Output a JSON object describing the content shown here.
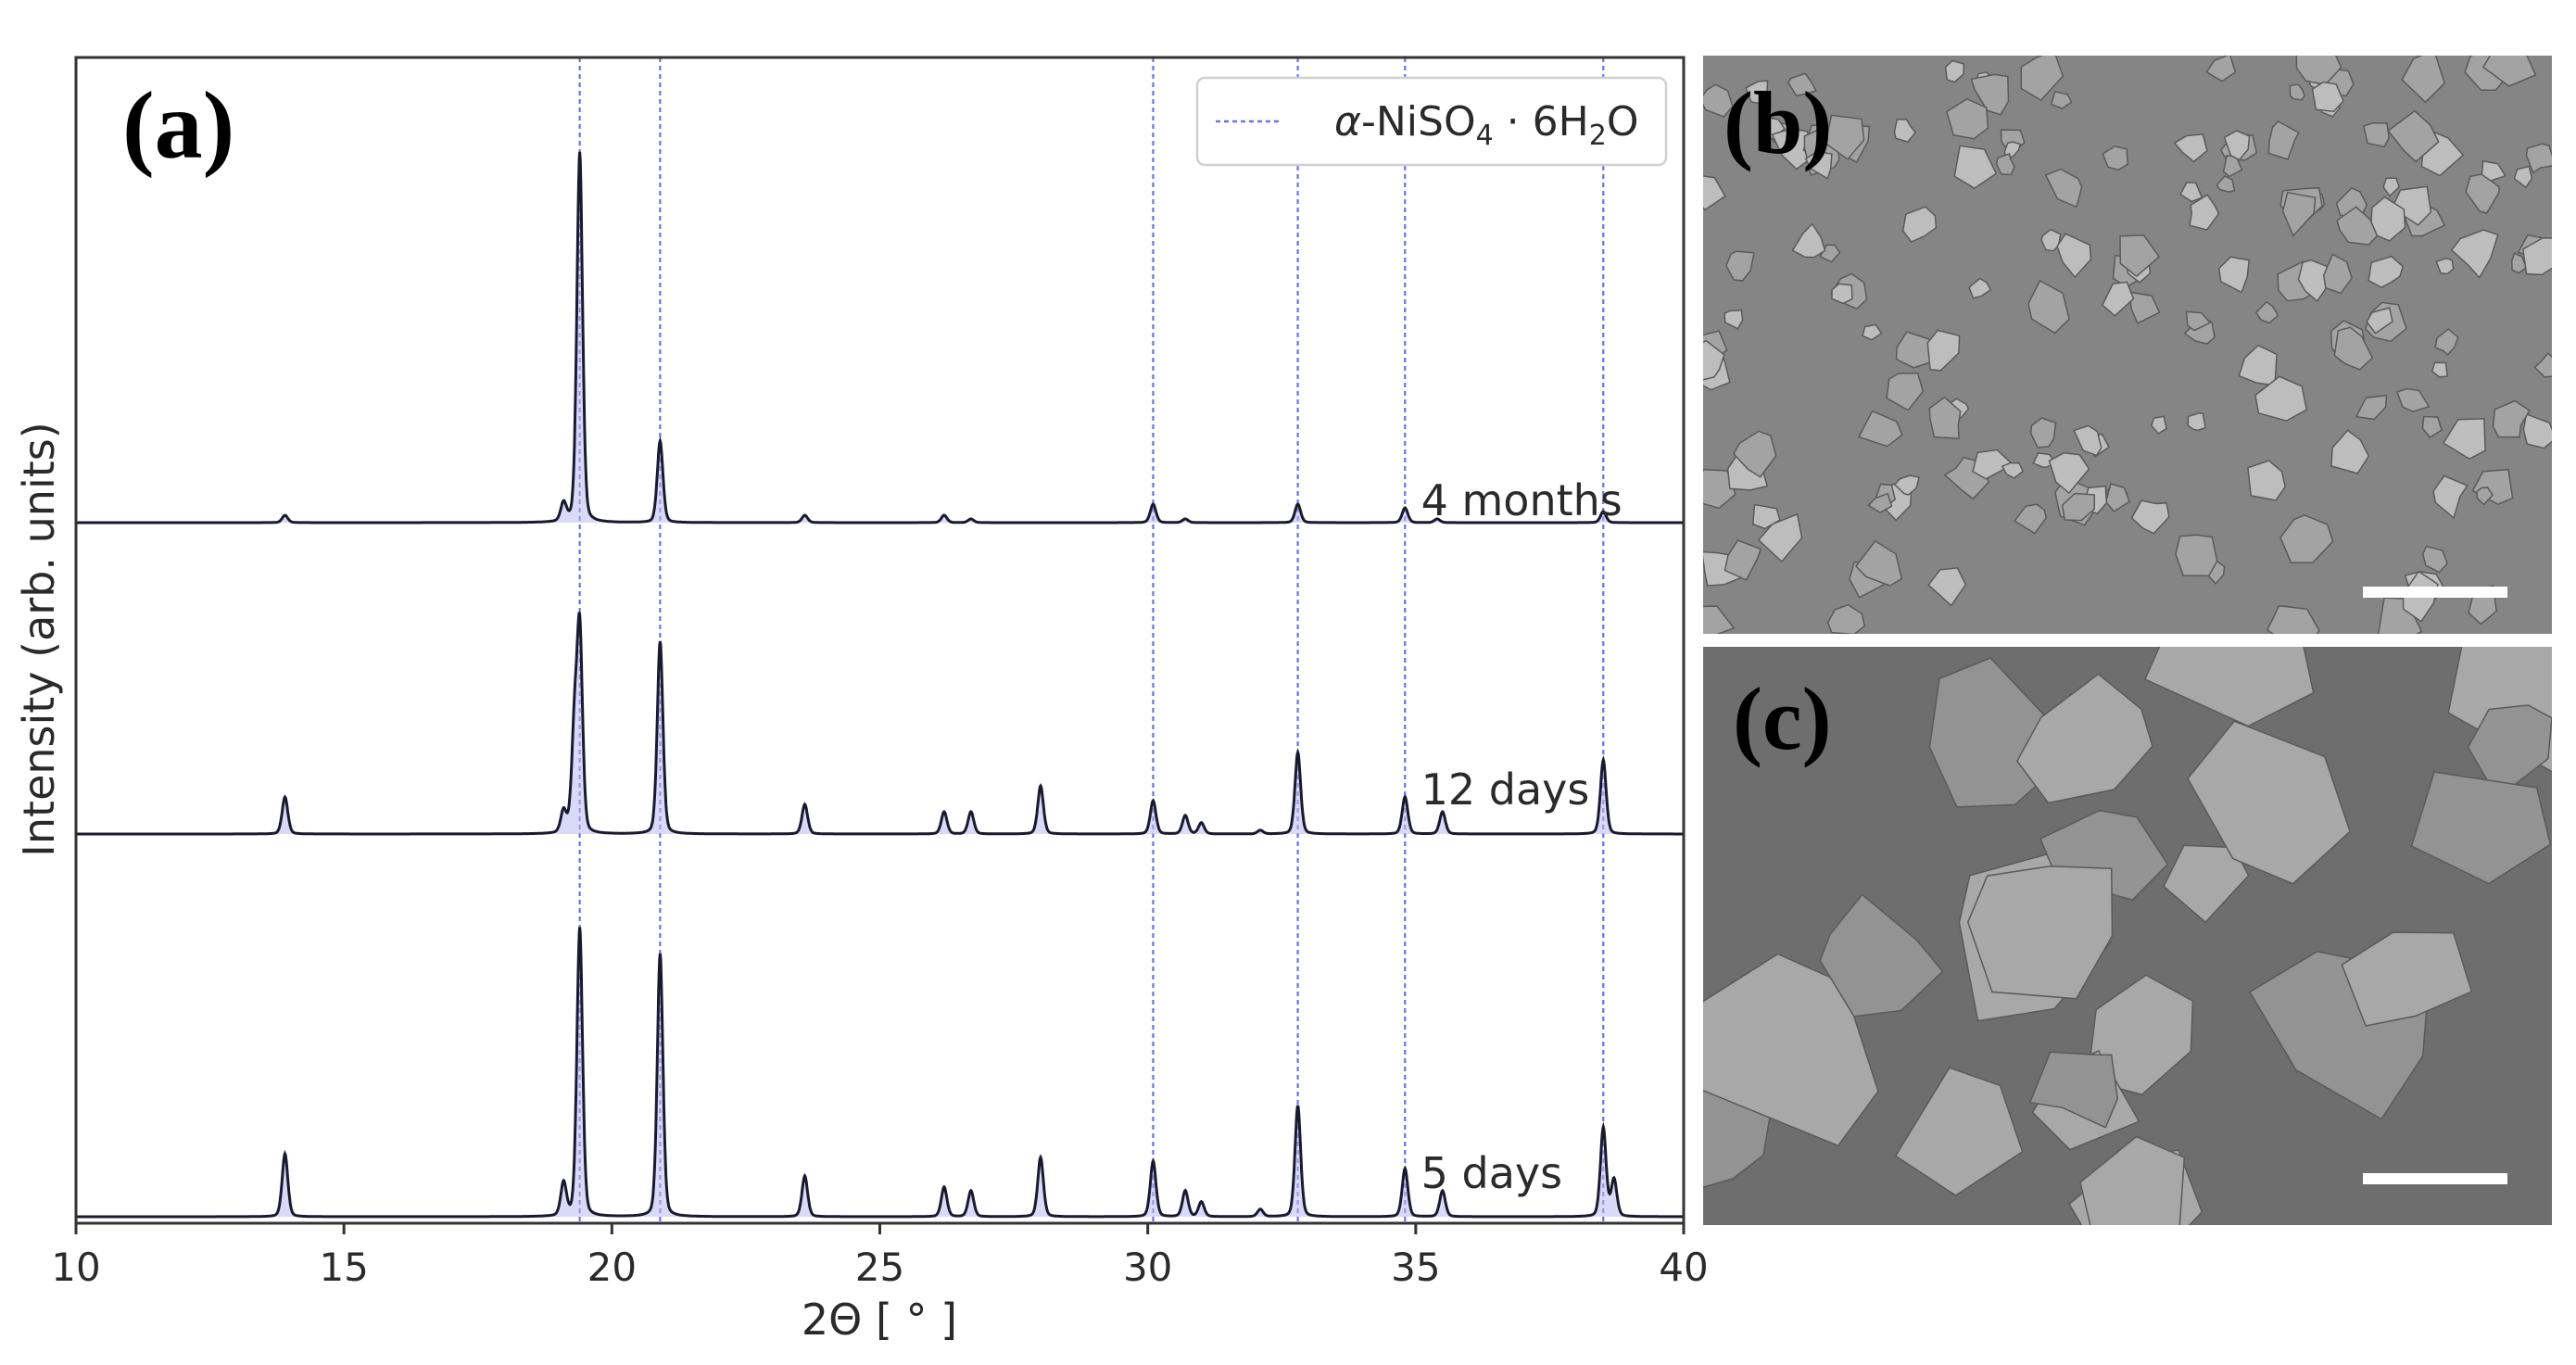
{
  "panels": {
    "a": "(a)",
    "b": "(b)",
    "c": "(c)"
  },
  "colors": {
    "trace": "#1a1a2e",
    "fill": "#b8bcf0",
    "reference_line": "#7070e0",
    "axis": "#333333",
    "sem_background": "#7d7d7d",
    "sem_particle": "#b4b4b4",
    "scale_bar": "#ffffff"
  },
  "chart_data": {
    "type": "line",
    "xlabel": "2Θ [ ° ]",
    "ylabel": "Intensity (arb. units)",
    "xlim": [
      10,
      40
    ],
    "xticks": [
      10,
      15,
      20,
      25,
      30,
      35,
      40
    ],
    "grid": false,
    "legend": {
      "placement": "top-right",
      "entries": [
        {
          "label_prefix": "α-NiSO",
          "sub1": "4",
          "middle": " · 6H",
          "sub2": "2",
          "suffix": "O"
        }
      ]
    },
    "reference_lines": [
      19.4,
      20.9,
      30.1,
      32.8,
      34.8,
      38.5
    ],
    "series": [
      {
        "name": "4 months",
        "peaks": [
          [
            13.9,
            0.02
          ],
          [
            19.1,
            0.05
          ],
          [
            19.4,
            1.0
          ],
          [
            20.9,
            0.22
          ],
          [
            23.6,
            0.02
          ],
          [
            26.2,
            0.02
          ],
          [
            26.7,
            0.01
          ],
          [
            30.1,
            0.05
          ],
          [
            30.7,
            0.01
          ],
          [
            32.8,
            0.05
          ],
          [
            34.8,
            0.04
          ],
          [
            35.4,
            0.01
          ],
          [
            38.5,
            0.03
          ]
        ]
      },
      {
        "name": "12 days",
        "peaks": [
          [
            13.9,
            0.1
          ],
          [
            19.1,
            0.06
          ],
          [
            19.3,
            0.26
          ],
          [
            19.4,
            0.54
          ],
          [
            20.9,
            0.52
          ],
          [
            23.6,
            0.08
          ],
          [
            26.2,
            0.06
          ],
          [
            26.7,
            0.06
          ],
          [
            28.0,
            0.13
          ],
          [
            30.1,
            0.09
          ],
          [
            30.7,
            0.05
          ],
          [
            31.0,
            0.03
          ],
          [
            32.1,
            0.01
          ],
          [
            32.8,
            0.22
          ],
          [
            34.8,
            0.1
          ],
          [
            35.5,
            0.06
          ],
          [
            38.5,
            0.2
          ]
        ]
      },
      {
        "name": "5 days",
        "peaks": [
          [
            13.9,
            0.17
          ],
          [
            19.1,
            0.09
          ],
          [
            19.4,
            0.78
          ],
          [
            20.9,
            0.71
          ],
          [
            23.6,
            0.11
          ],
          [
            26.2,
            0.08
          ],
          [
            26.7,
            0.07
          ],
          [
            28.0,
            0.16
          ],
          [
            30.1,
            0.15
          ],
          [
            30.7,
            0.07
          ],
          [
            31.0,
            0.04
          ],
          [
            32.1,
            0.02
          ],
          [
            32.8,
            0.3
          ],
          [
            34.8,
            0.13
          ],
          [
            35.5,
            0.07
          ],
          [
            38.5,
            0.24
          ],
          [
            38.7,
            0.1
          ]
        ]
      }
    ]
  }
}
